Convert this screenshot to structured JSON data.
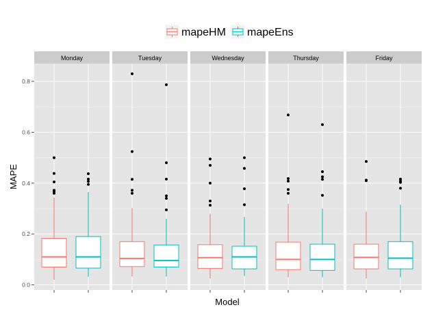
{
  "chart_data": {
    "type": "boxplot",
    "title": "",
    "xlabel": "Model",
    "ylabel": "MAPE",
    "ylim": [
      -0.02,
      0.87
    ],
    "yticks": [
      0.0,
      0.2,
      0.4,
      0.6,
      0.8
    ],
    "ytick_labels": [
      "0.0",
      "0.2",
      "0.4",
      "0.6",
      "0.8"
    ],
    "grid": true,
    "legend_position": "top",
    "series": [
      {
        "name": "mapeHM",
        "color": "#F8766D"
      },
      {
        "name": "mapeEns",
        "color": "#00BFC4"
      }
    ],
    "facets": [
      {
        "label": "Monday",
        "boxes": [
          {
            "series": "mapeHM",
            "whisker_low": 0.02,
            "q1": 0.07,
            "median": 0.11,
            "q3": 0.183,
            "whisker_high": 0.343,
            "outliers": [
              0.5,
              0.438,
              0.405,
              0.372,
              0.367,
              0.36
            ]
          },
          {
            "series": "mapeEns",
            "whisker_low": 0.032,
            "q1": 0.066,
            "median": 0.11,
            "q3": 0.19,
            "whisker_high": 0.365,
            "outliers": [
              0.437,
              0.416,
              0.407,
              0.395
            ]
          }
        ]
      },
      {
        "label": "Tuesday",
        "boxes": [
          {
            "series": "mapeHM",
            "whisker_low": 0.033,
            "q1": 0.072,
            "median": 0.104,
            "q3": 0.17,
            "whisker_high": 0.302,
            "outliers": [
              0.83,
              0.524,
              0.415,
              0.372,
              0.36
            ]
          },
          {
            "series": "mapeEns",
            "whisker_low": 0.033,
            "q1": 0.07,
            "median": 0.096,
            "q3": 0.157,
            "whisker_high": 0.26,
            "outliers": [
              0.787,
              0.48,
              0.416,
              0.35,
              0.34,
              0.295
            ]
          }
        ]
      },
      {
        "label": "Wednesday",
        "boxes": [
          {
            "series": "mapeHM",
            "whisker_low": 0.025,
            "q1": 0.065,
            "median": 0.107,
            "q3": 0.158,
            "whisker_high": 0.28,
            "outliers": [
              0.495,
              0.47,
              0.4,
              0.33,
              0.313
            ]
          },
          {
            "series": "mapeEns",
            "whisker_low": 0.035,
            "q1": 0.063,
            "median": 0.11,
            "q3": 0.152,
            "whisker_high": 0.267,
            "outliers": [
              0.5,
              0.458,
              0.378,
              0.315
            ]
          }
        ]
      },
      {
        "label": "Thursday",
        "boxes": [
          {
            "series": "mapeHM",
            "whisker_low": 0.03,
            "q1": 0.06,
            "median": 0.1,
            "q3": 0.168,
            "whisker_high": 0.318,
            "outliers": [
              0.668,
              0.418,
              0.408,
              0.375,
              0.36
            ]
          },
          {
            "series": "mapeEns",
            "whisker_low": 0.03,
            "q1": 0.057,
            "median": 0.1,
            "q3": 0.16,
            "whisker_high": 0.3,
            "outliers": [
              0.63,
              0.445,
              0.425,
              0.415,
              0.352
            ]
          }
        ]
      },
      {
        "label": "Friday",
        "boxes": [
          {
            "series": "mapeHM",
            "whisker_low": 0.025,
            "q1": 0.063,
            "median": 0.108,
            "q3": 0.16,
            "whisker_high": 0.288,
            "outliers": [
              0.485,
              0.412,
              0.41
            ]
          },
          {
            "series": "mapeEns",
            "whisker_low": 0.03,
            "q1": 0.063,
            "median": 0.105,
            "q3": 0.17,
            "whisker_high": 0.315,
            "outliers": [
              0.416,
              0.408,
              0.403,
              0.38
            ]
          }
        ]
      }
    ]
  }
}
